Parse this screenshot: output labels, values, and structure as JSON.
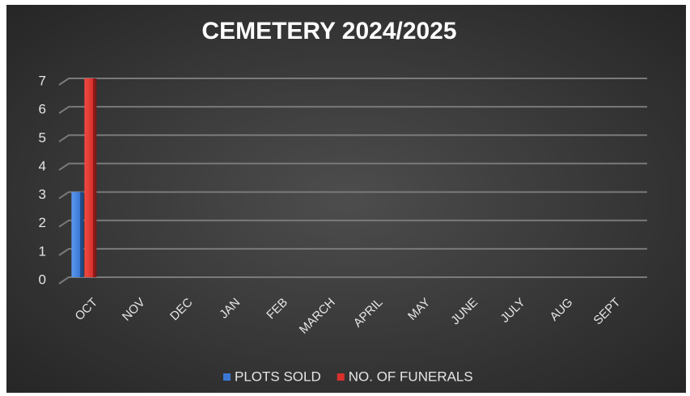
{
  "chart_data": {
    "type": "bar",
    "title": "CEMETERY 2024/2025",
    "categories": [
      "OCT",
      "NOV",
      "DEC",
      "JAN",
      "FEB",
      "MARCH",
      "APRIL",
      "MAY",
      "JUNE",
      "JULY",
      "AUG",
      "SEPT"
    ],
    "series": [
      {
        "name": "PLOTS SOLD",
        "color": "#3a78d4",
        "values": [
          3,
          null,
          null,
          null,
          null,
          null,
          null,
          null,
          null,
          null,
          null,
          null
        ]
      },
      {
        "name": "NO. OF FUNERALS",
        "color": "#d9302c",
        "values": [
          7,
          null,
          null,
          null,
          null,
          null,
          null,
          null,
          null,
          null,
          null,
          null
        ]
      }
    ],
    "ylim": [
      0,
      7
    ],
    "yticks": [
      0,
      1,
      2,
      3,
      4,
      5,
      6,
      7
    ],
    "grid": true,
    "legend": "bottom"
  }
}
